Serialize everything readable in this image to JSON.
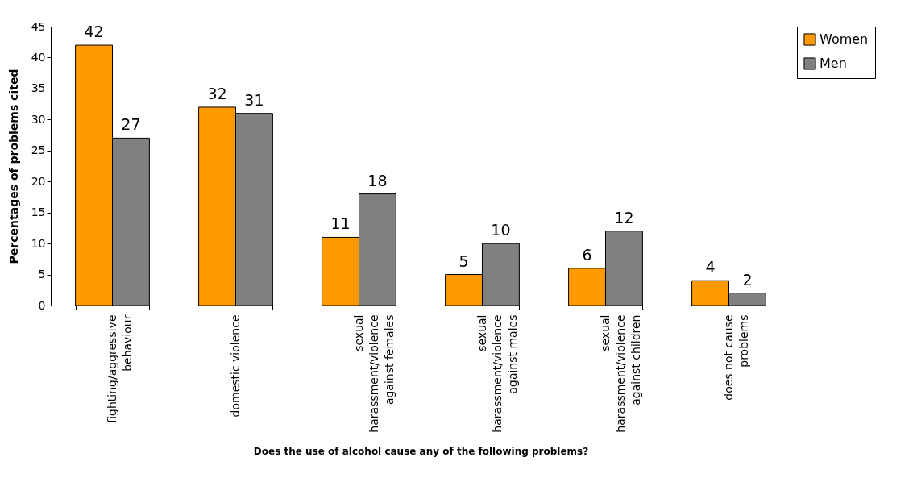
{
  "chart_data": {
    "type": "bar",
    "xlabel": "Does the use of alcohol cause any of the following problems?",
    "ylabel": "Percentages of problems cited",
    "categories": [
      "fighting/aggressive behaviour",
      "domestic violence",
      "sexual harassment/violence against females",
      "sexual harassment/violence against males",
      "sexual harassment/violence against children",
      "does not cause problems"
    ],
    "series": [
      {
        "name": "Women",
        "color": "#ff9900",
        "values": [
          42,
          32,
          11,
          5,
          6,
          4
        ]
      },
      {
        "name": "Men",
        "color": "#808080",
        "values": [
          27,
          31,
          18,
          10,
          12,
          2
        ]
      }
    ],
    "ylim": [
      0,
      45
    ],
    "yticks": [
      0,
      5,
      10,
      15,
      20,
      25,
      30,
      35,
      40,
      45
    ],
    "data_labels": true,
    "legend": "right",
    "grid": false
  }
}
